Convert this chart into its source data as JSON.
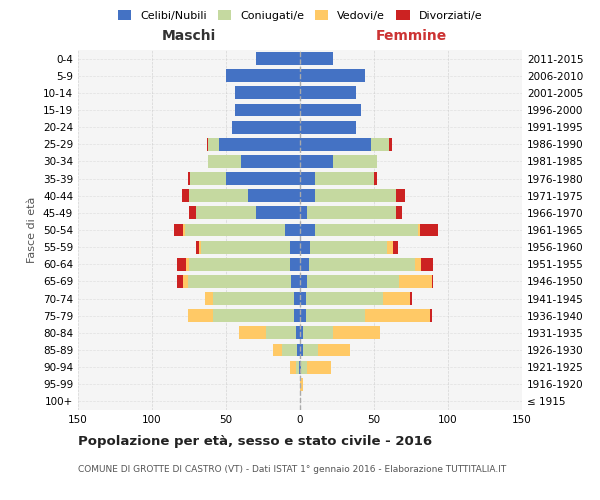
{
  "age_groups": [
    "100+",
    "95-99",
    "90-94",
    "85-89",
    "80-84",
    "75-79",
    "70-74",
    "65-69",
    "60-64",
    "55-59",
    "50-54",
    "45-49",
    "40-44",
    "35-39",
    "30-34",
    "25-29",
    "20-24",
    "15-19",
    "10-14",
    "5-9",
    "0-4"
  ],
  "birth_years": [
    "≤ 1915",
    "1916-1920",
    "1921-1925",
    "1926-1930",
    "1931-1935",
    "1936-1940",
    "1941-1945",
    "1946-1950",
    "1951-1955",
    "1956-1960",
    "1961-1965",
    "1966-1970",
    "1971-1975",
    "1976-1980",
    "1981-1985",
    "1986-1990",
    "1991-1995",
    "1996-2000",
    "2001-2005",
    "2006-2010",
    "2011-2015"
  ],
  "colors": {
    "celibi": "#4472c4",
    "coniugati": "#c5d9a0",
    "vedovi": "#ffc966",
    "divorziati": "#cc2222"
  },
  "males": {
    "celibi": [
      0,
      0,
      1,
      2,
      3,
      4,
      4,
      6,
      7,
      7,
      10,
      30,
      35,
      50,
      40,
      55,
      46,
      44,
      44,
      50,
      30
    ],
    "coniugati": [
      0,
      0,
      2,
      10,
      20,
      55,
      55,
      70,
      68,
      60,
      68,
      40,
      40,
      24,
      22,
      7,
      0,
      0,
      0,
      0,
      0
    ],
    "vedovi": [
      0,
      0,
      4,
      6,
      18,
      17,
      5,
      3,
      2,
      1,
      1,
      0,
      0,
      0,
      0,
      0,
      0,
      0,
      0,
      0,
      0
    ],
    "divorziati": [
      0,
      0,
      0,
      0,
      0,
      0,
      0,
      4,
      6,
      2,
      6,
      5,
      5,
      2,
      0,
      1,
      0,
      0,
      0,
      0,
      0
    ]
  },
  "females": {
    "nubili": [
      0,
      0,
      1,
      2,
      2,
      4,
      4,
      5,
      6,
      7,
      10,
      5,
      10,
      10,
      22,
      48,
      38,
      41,
      38,
      44,
      22
    ],
    "coniugati": [
      0,
      0,
      4,
      10,
      20,
      40,
      52,
      62,
      72,
      52,
      70,
      60,
      55,
      40,
      30,
      12,
      0,
      0,
      0,
      0,
      0
    ],
    "vedove": [
      0,
      2,
      16,
      22,
      32,
      44,
      18,
      22,
      4,
      4,
      1,
      0,
      0,
      0,
      0,
      0,
      0,
      0,
      0,
      0,
      0
    ],
    "divorziate": [
      0,
      0,
      0,
      0,
      0,
      1,
      2,
      1,
      8,
      3,
      12,
      4,
      6,
      2,
      0,
      2,
      0,
      0,
      0,
      0,
      0
    ]
  },
  "title": "Popolazione per età, sesso e stato civile - 2016",
  "subtitle": "COMUNE DI GROTTE DI CASTRO (VT) - Dati ISTAT 1° gennaio 2016 - Elaborazione TUTTITALIA.IT",
  "xlabel_left": "Maschi",
  "xlabel_right": "Femmine",
  "ylabel_left": "Fasce di età",
  "xlim": 150,
  "background_color": "#f5f5f5",
  "grid_color": "#cccccc"
}
